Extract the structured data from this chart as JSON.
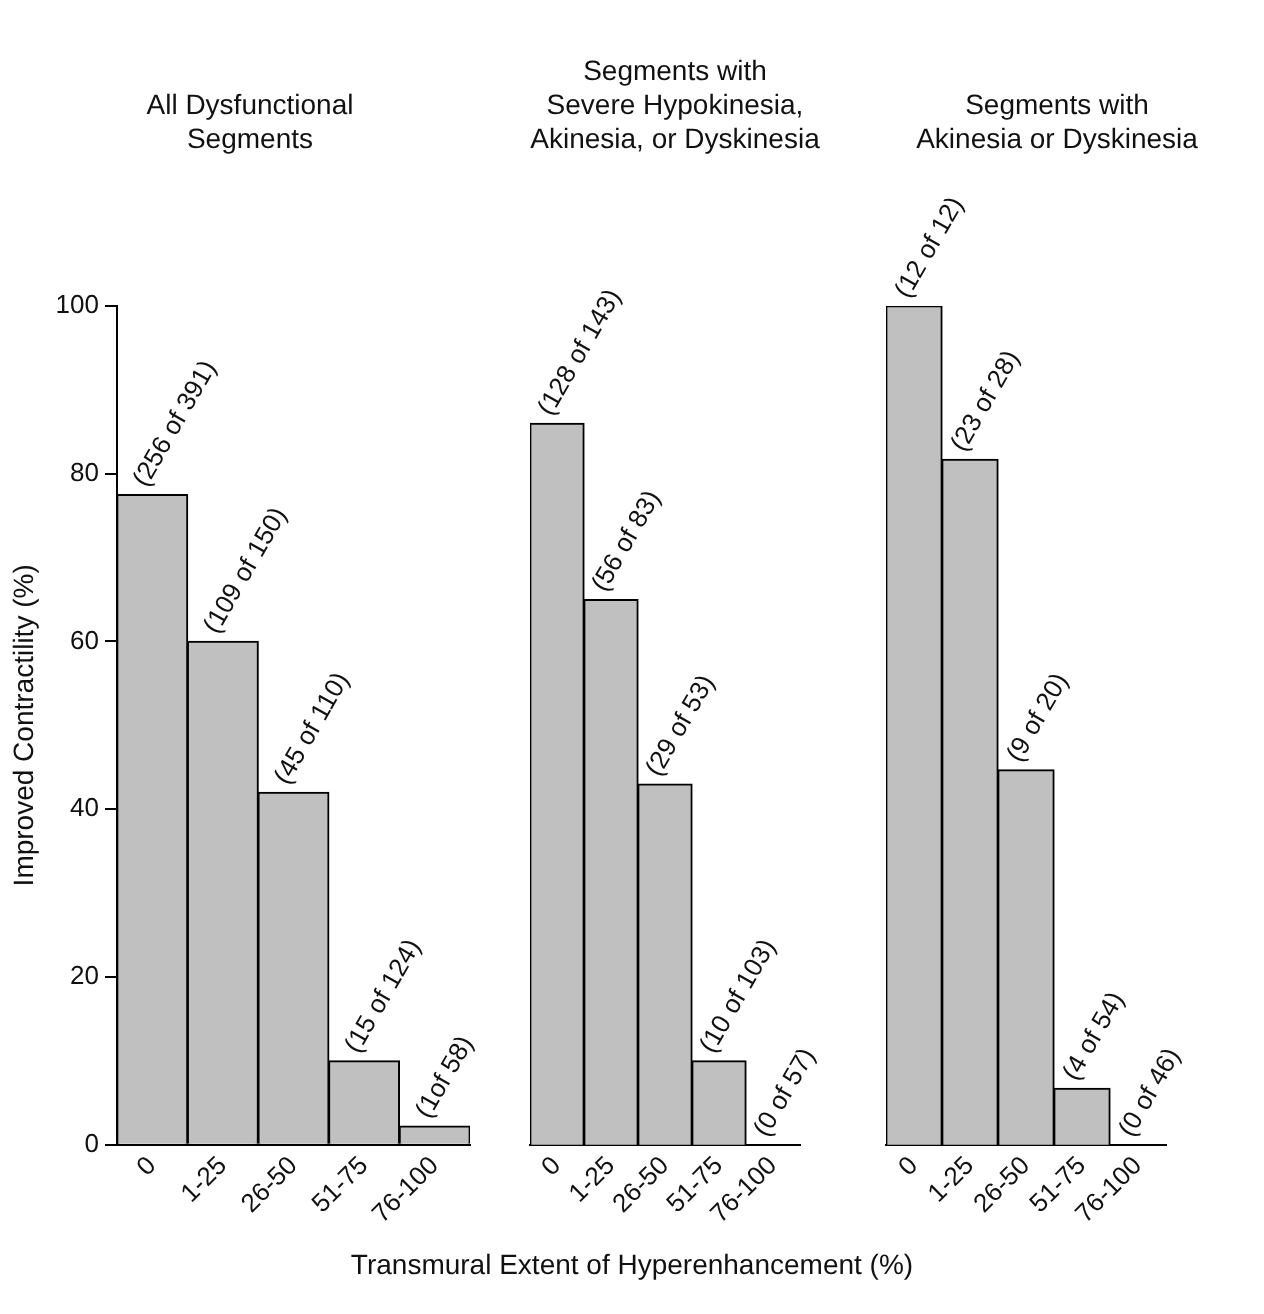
{
  "chart_data": [
    {
      "type": "bar",
      "title": "All Dysfunctional\nSegments",
      "ylabel": "Improved Contractility (%)",
      "categories": [
        "0",
        "1-25",
        "26-50",
        "51-75",
        "76-100"
      ],
      "values": [
        77.5,
        60,
        42,
        10,
        2.2
      ],
      "value_labels": [
        "(256 of 391)",
        "(109 of 150)",
        "(45 of 110)",
        "(15 of 124)",
        "(1of 58)"
      ],
      "color": "#c0c0c0",
      "ylim": [
        0,
        100
      ],
      "yticks": [
        0,
        20,
        40,
        60,
        80,
        100
      ]
    },
    {
      "type": "bar",
      "title": "Segments with\nSevere Hypokinesia,\nAkinesia, or Dyskinesia",
      "xlabel": "Transmural Extent of Hyperenhancement (%)",
      "categories": [
        "0",
        "1-25",
        "26-50",
        "51-75",
        "76-100"
      ],
      "values": [
        86,
        65,
        43,
        10,
        0
      ],
      "value_labels": [
        "(128 of 143)",
        "(56 of 83)",
        "(29 of 53)",
        "(10 of 103)",
        "(0 of 57)"
      ],
      "color": "#c0c0c0",
      "ylim": [
        0,
        100
      ],
      "tick_labels": "x"
    },
    {
      "type": "bar",
      "title": "Segments with\nAkinesia or Dyskinesia",
      "categories": [
        "0",
        "1-25",
        "26-50",
        "51-75",
        "76-100"
      ],
      "values": [
        100,
        81.7,
        44.7,
        6.7,
        0
      ],
      "value_labels": [
        "(12 of 12)",
        "(23 of 28)",
        "(9 of 20)",
        "(4 of 54)",
        "(0 of 46)"
      ],
      "color": "#c0c0c0",
      "ylim": [
        0,
        100
      ],
      "tick_labels": "x"
    }
  ]
}
